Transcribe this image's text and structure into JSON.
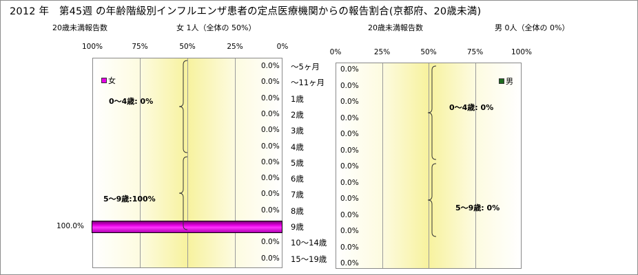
{
  "title": "2012 年　第45週 の年齢階級別インフルエンザ患者の定点医療機関からの報告割合(京都府、20歳未満)",
  "female": {
    "count_label": "20歳未満報告数",
    "summary": "女  1人（全体の  50%）",
    "legend": "女",
    "color": "#e600e6",
    "groups": [
      {
        "label": "0～4歳:  0%"
      },
      {
        "label": "5～9歳:100%"
      }
    ]
  },
  "male": {
    "count_label": "20歳未満報告数",
    "summary": "男  0人（全体の   0%）",
    "legend": "男",
    "color": "#1f6b1f",
    "groups": [
      {
        "label": "0～4歳:  0%"
      },
      {
        "label": "5～9歳:  0%"
      }
    ]
  },
  "chart_data": [
    {
      "type": "bar",
      "orientation": "horizontal",
      "x_reversed": true,
      "xlim": [
        0,
        100
      ],
      "x_ticks": [
        "100%",
        "75%",
        "50%",
        "25%",
        "0%"
      ],
      "categories": [
        "～5ヶ月",
        "～11ヶ月",
        "1歳",
        "2歳",
        "3歳",
        "4歳",
        "5歳",
        "6歳",
        "7歳",
        "8歳",
        "9歳",
        "10～14歳",
        "15～19歳"
      ],
      "series": [
        {
          "name": "女",
          "values": [
            0,
            0,
            0,
            0,
            0,
            0,
            0,
            0,
            0,
            0,
            100,
            0,
            0
          ],
          "value_labels": [
            "0.0%",
            "0.0%",
            "0.0%",
            "0.0%",
            "0.0%",
            "0.0%",
            "0.0%",
            "0.0%",
            "0.0%",
            "0.0%",
            "100.0%",
            "0.0%",
            "0.0%"
          ]
        }
      ]
    },
    {
      "type": "bar",
      "orientation": "horizontal",
      "x_reversed": false,
      "xlim": [
        0,
        100
      ],
      "x_ticks": [
        "0%",
        "25%",
        "50%",
        "75%",
        "100%"
      ],
      "categories": [
        "～5ヶ月",
        "～11ヶ月",
        "1歳",
        "2歳",
        "3歳",
        "4歳",
        "5歳",
        "6歳",
        "7歳",
        "8歳",
        "9歳",
        "10～14歳",
        "15～19歳"
      ],
      "series": [
        {
          "name": "男",
          "values": [
            0,
            0,
            0,
            0,
            0,
            0,
            0,
            0,
            0,
            0,
            0,
            0,
            0
          ],
          "value_labels": [
            "0.0%",
            "0.0%",
            "0.0%",
            "0.0%",
            "0.0%",
            "0.0%",
            "0.0%",
            "0.0%",
            "0.0%",
            "0.0%",
            "0.0%",
            "0.0%",
            "0.0%"
          ]
        }
      ]
    }
  ]
}
